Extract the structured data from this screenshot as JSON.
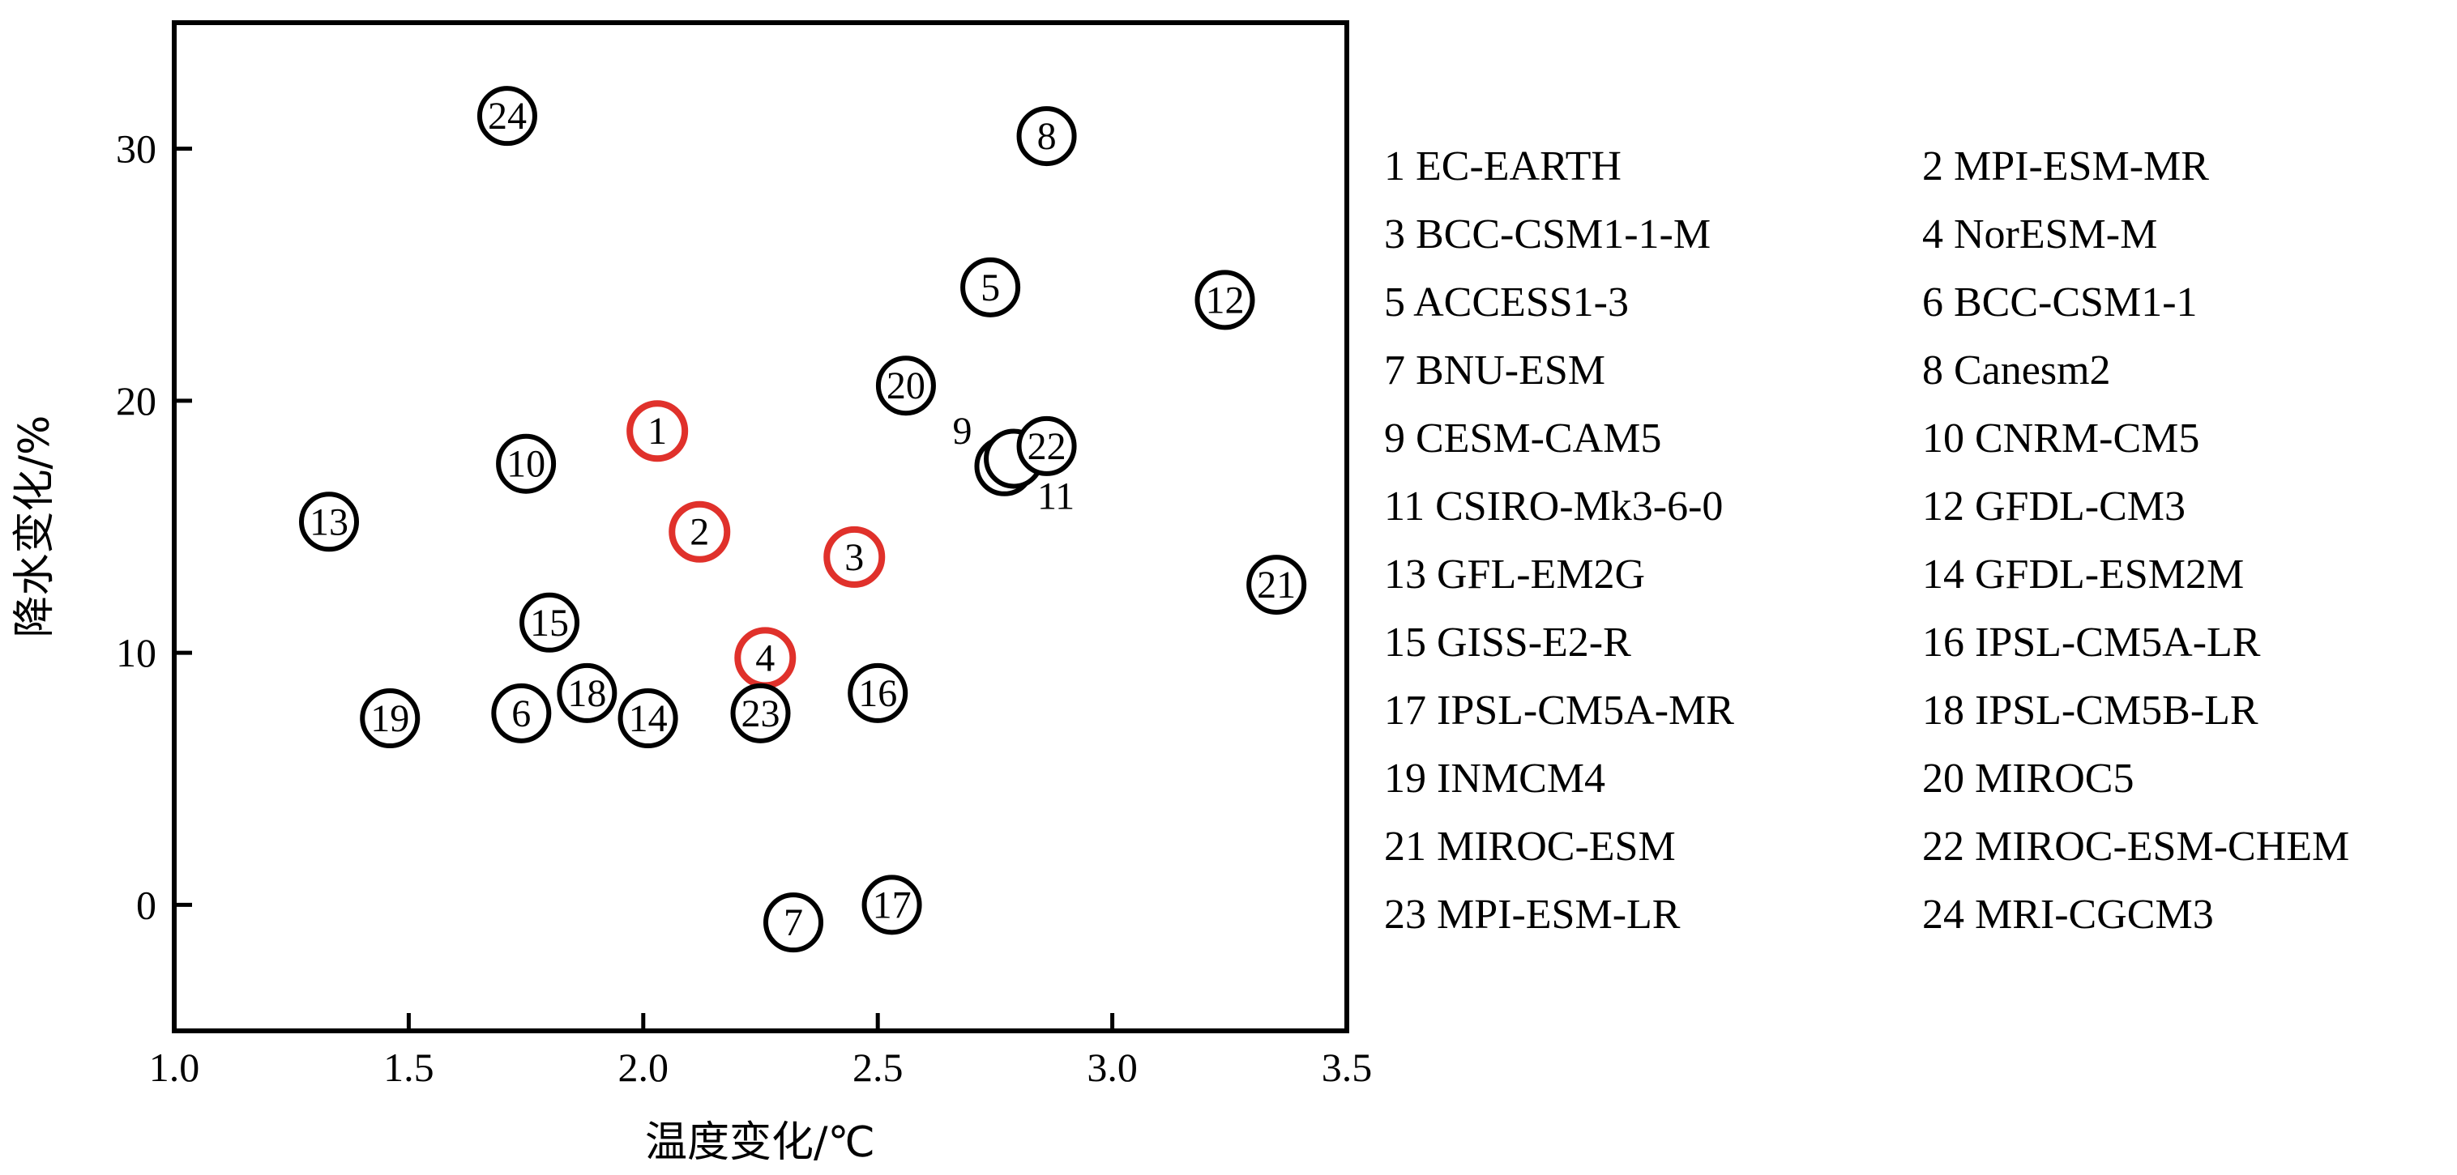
{
  "chart_data": {
    "type": "scatter",
    "title": "",
    "xlabel": "温度变化/℃",
    "ylabel": "降水变化/%",
    "xlim": [
      1.0,
      3.5
    ],
    "ylim": [
      -5,
      35
    ],
    "xticks": [
      "1.0",
      "1.5",
      "2.0",
      "2.5",
      "3.0",
      "3.5"
    ],
    "xtick_values": [
      1.0,
      1.5,
      2.0,
      2.5,
      3.0,
      3.5
    ],
    "yticks": [
      "0",
      "10",
      "20",
      "30"
    ],
    "ytick_values": [
      0,
      10,
      20,
      30
    ],
    "grid": false,
    "legend_position": "right",
    "colors": {
      "default": "#000000",
      "highlight": "#e0312b"
    },
    "points": [
      {
        "id": "1",
        "name": "EC-EARTH",
        "x": 2.03,
        "y": 18.8,
        "highlight": true
      },
      {
        "id": "2",
        "name": "MPI-ESM-MR",
        "x": 2.12,
        "y": 14.8,
        "highlight": true
      },
      {
        "id": "3",
        "name": "BCC-CSM1-1-M",
        "x": 2.45,
        "y": 13.8,
        "highlight": true
      },
      {
        "id": "4",
        "name": "NorESM-M",
        "x": 2.26,
        "y": 9.8,
        "highlight": true
      },
      {
        "id": "5",
        "name": "ACCESS1-3",
        "x": 2.74,
        "y": 24.5,
        "highlight": false
      },
      {
        "id": "6",
        "name": "BCC-CSM1-1",
        "x": 1.74,
        "y": 7.6,
        "highlight": false
      },
      {
        "id": "7",
        "name": "BNU-ESM",
        "x": 2.32,
        "y": -0.7,
        "highlight": false
      },
      {
        "id": "8",
        "name": "Canesm2",
        "x": 2.86,
        "y": 30.5,
        "highlight": false
      },
      {
        "id": "9",
        "name": "CESM-CAM5",
        "x": 2.77,
        "y": 17.4,
        "highlight": false,
        "outside_label": true,
        "label_dx": -1,
        "label_dy": -1
      },
      {
        "id": "10",
        "name": "CNRM-CM5",
        "x": 1.75,
        "y": 17.5,
        "highlight": false
      },
      {
        "id": "11",
        "name": "CSIRO-Mk3-6-0",
        "x": 2.79,
        "y": 17.7,
        "highlight": false,
        "outside_label": true,
        "label_dx": 1,
        "label_dy": 1
      },
      {
        "id": "12",
        "name": "GFDL-CM3",
        "x": 3.24,
        "y": 24.0,
        "highlight": false
      },
      {
        "id": "13",
        "name": "GFL-EM2G",
        "x": 1.33,
        "y": 15.2,
        "highlight": false
      },
      {
        "id": "14",
        "name": "GFDL-ESM2M",
        "x": 2.01,
        "y": 7.4,
        "highlight": false
      },
      {
        "id": "15",
        "name": "GISS-E2-R",
        "x": 1.8,
        "y": 11.2,
        "highlight": false
      },
      {
        "id": "16",
        "name": "IPSL-CM5A-LR",
        "x": 2.5,
        "y": 8.4,
        "highlight": false
      },
      {
        "id": "17",
        "name": "IPSL-CM5A-MR",
        "x": 2.53,
        "y": 0.0,
        "highlight": false
      },
      {
        "id": "18",
        "name": "IPSL-CM5B-LR",
        "x": 1.88,
        "y": 8.4,
        "highlight": false
      },
      {
        "id": "19",
        "name": "INMCM4",
        "x": 1.46,
        "y": 7.4,
        "highlight": false
      },
      {
        "id": "20",
        "name": "MIROC5",
        "x": 2.56,
        "y": 20.6,
        "highlight": false
      },
      {
        "id": "21",
        "name": "MIROC-ESM",
        "x": 3.35,
        "y": 12.7,
        "highlight": false
      },
      {
        "id": "22",
        "name": "MIROC-ESM-CHEM",
        "x": 2.86,
        "y": 18.2,
        "highlight": false
      },
      {
        "id": "23",
        "name": "MPI-ESM-LR",
        "x": 2.25,
        "y": 7.6,
        "highlight": false
      },
      {
        "id": "24",
        "name": "MRI-CGCM3",
        "x": 1.71,
        "y": 31.3,
        "highlight": false
      }
    ],
    "legend": [
      "1 EC-EARTH",
      "2 MPI-ESM-MR",
      "3 BCC-CSM1-1-M",
      "4 NorESM-M",
      "5 ACCESS1-3",
      "6 BCC-CSM1-1",
      "7 BNU-ESM",
      "8 Canesm2",
      "9 CESM-CAM5",
      "10 CNRM-CM5",
      "11 CSIRO-Mk3-6-0",
      "12 GFDL-CM3",
      "13 GFL-EM2G",
      "14 GFDL-ESM2M",
      "15 GISS-E2-R",
      "16 IPSL-CM5A-LR",
      "17 IPSL-CM5A-MR",
      "18 IPSL-CM5B-LR",
      "19 INMCM4",
      "20 MIROC5",
      "21 MIROC-ESM",
      "22 MIROC-ESM-CHEM",
      "23 MPI-ESM-LR",
      "24 MRI-CGCM3"
    ]
  }
}
